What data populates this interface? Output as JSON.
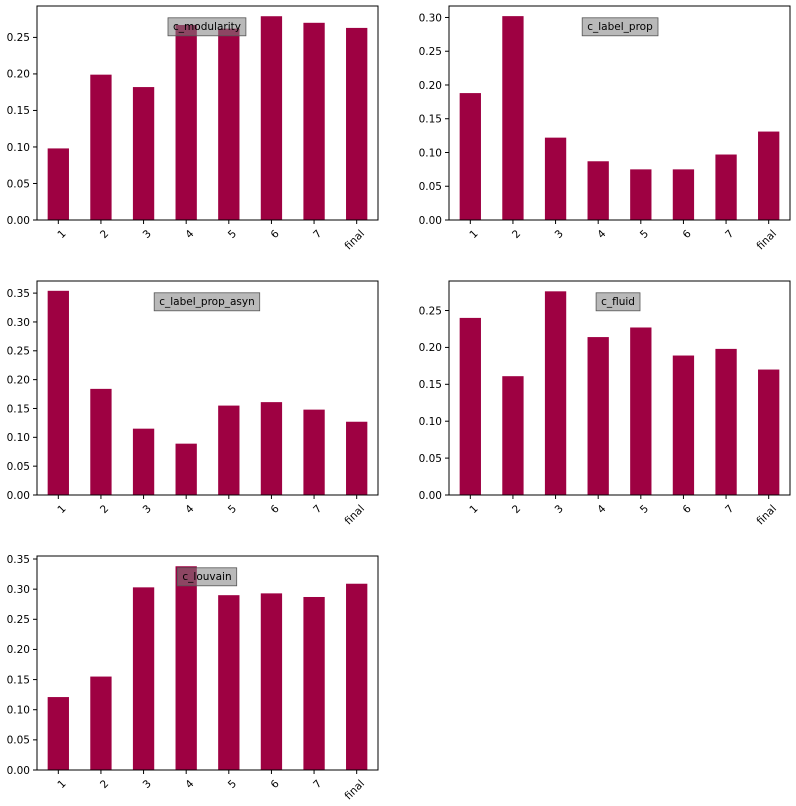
{
  "chart_data": [
    {
      "type": "bar",
      "title": "c_modularity",
      "categories": [
        "1",
        "2",
        "3",
        "4",
        "5",
        "6",
        "7",
        "final"
      ],
      "values": [
        0.098,
        0.199,
        0.182,
        0.267,
        0.262,
        0.279,
        0.27,
        0.263
      ],
      "yticks": [
        "0.00",
        "0.05",
        "0.10",
        "0.15",
        "0.20",
        "0.25"
      ],
      "ylim": [
        0,
        0.293
      ],
      "color": "#9e0142",
      "grid": false,
      "legend": "none"
    },
    {
      "type": "bar",
      "title": "c_label_prop",
      "categories": [
        "1",
        "2",
        "3",
        "4",
        "5",
        "6",
        "7",
        "final"
      ],
      "values": [
        0.188,
        0.302,
        0.122,
        0.087,
        0.075,
        0.075,
        0.097,
        0.131
      ],
      "yticks": [
        "0.00",
        "0.05",
        "0.10",
        "0.15",
        "0.20",
        "0.25",
        "0.30"
      ],
      "ylim": [
        0,
        0.317
      ],
      "color": "#9e0142",
      "grid": false,
      "legend": "none"
    },
    {
      "type": "bar",
      "title": "c_label_prop_asyn",
      "categories": [
        "1",
        "2",
        "3",
        "4",
        "5",
        "6",
        "7",
        "final"
      ],
      "values": [
        0.354,
        0.184,
        0.115,
        0.089,
        0.155,
        0.161,
        0.148,
        0.127
      ],
      "yticks": [
        "0.00",
        "0.05",
        "0.10",
        "0.15",
        "0.20",
        "0.25",
        "0.30",
        "0.35"
      ],
      "ylim": [
        0,
        0.371
      ],
      "color": "#9e0142",
      "grid": false,
      "legend": "none"
    },
    {
      "type": "bar",
      "title": "c_fluid",
      "categories": [
        "1",
        "2",
        "3",
        "4",
        "5",
        "6",
        "7",
        "final"
      ],
      "values": [
        0.24,
        0.161,
        0.276,
        0.214,
        0.227,
        0.189,
        0.198,
        0.17
      ],
      "yticks": [
        "0.00",
        "0.05",
        "0.10",
        "0.15",
        "0.20",
        "0.25"
      ],
      "ylim": [
        0,
        0.29
      ],
      "color": "#9e0142",
      "grid": false,
      "legend": "none"
    },
    {
      "type": "bar",
      "title": "c_louvain",
      "categories": [
        "1",
        "2",
        "3",
        "4",
        "5",
        "6",
        "7",
        "final"
      ],
      "values": [
        0.121,
        0.155,
        0.303,
        0.338,
        0.29,
        0.293,
        0.287,
        0.309
      ],
      "yticks": [
        "0.00",
        "0.05",
        "0.10",
        "0.15",
        "0.20",
        "0.25",
        "0.30",
        "0.35"
      ],
      "ylim": [
        0,
        0.355
      ],
      "color": "#9e0142",
      "grid": false,
      "legend": "none"
    }
  ]
}
